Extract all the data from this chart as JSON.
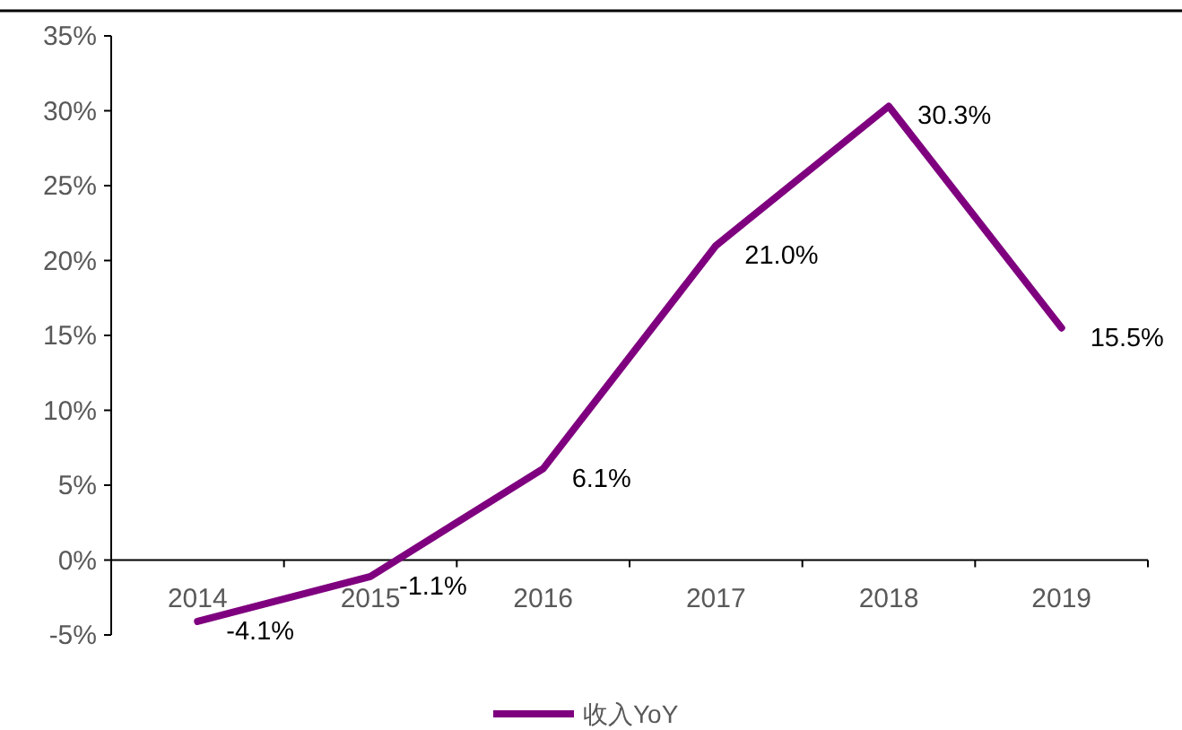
{
  "chart_data": {
    "type": "line",
    "categories": [
      "2014",
      "2015",
      "2016",
      "2017",
      "2018",
      "2019"
    ],
    "series": [
      {
        "name": "收入YoY",
        "color": "#7f007f",
        "values": [
          -4.1,
          -1.1,
          6.1,
          21.0,
          30.3,
          15.5
        ],
        "value_labels": [
          "-4.1%",
          "-1.1%",
          "6.1%",
          "21.0%",
          "30.3%",
          "15.5%"
        ]
      }
    ],
    "ylim": [
      -5,
      35
    ],
    "yticks": [
      {
        "value": -5,
        "label": "-5%"
      },
      {
        "value": 0,
        "label": "0%"
      },
      {
        "value": 5,
        "label": "5%"
      },
      {
        "value": 10,
        "label": "10%"
      },
      {
        "value": 15,
        "label": "15%"
      },
      {
        "value": 20,
        "label": "20%"
      },
      {
        "value": 25,
        "label": "25%"
      },
      {
        "value": 30,
        "label": "30%"
      },
      {
        "value": 35,
        "label": "35%"
      }
    ],
    "legend": "bottom",
    "marker": "none",
    "line_style": "solid"
  }
}
